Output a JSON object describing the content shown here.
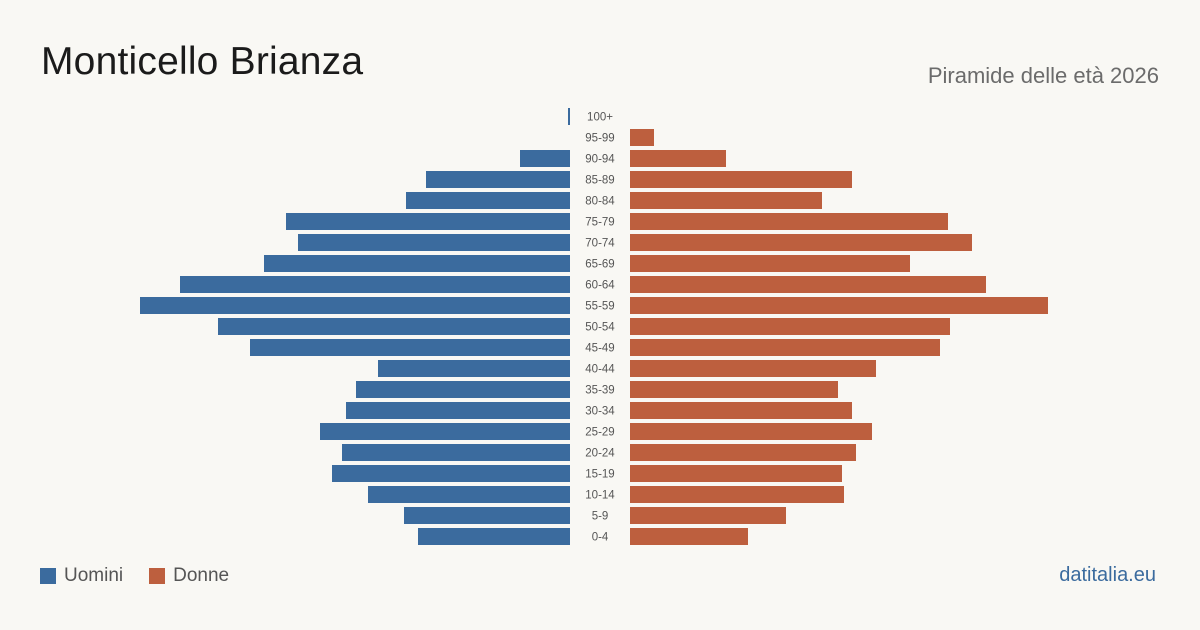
{
  "header": {
    "title": "Monticello Brianza",
    "subtitle": "Piramide delle età 2026"
  },
  "legend": {
    "men_label": "Uomini",
    "women_label": "Donne"
  },
  "brand": "datitalia.eu",
  "colors": {
    "men": "#3b6b9e",
    "women": "#bd5f3e",
    "background": "#f9f8f4"
  },
  "chart_data": {
    "type": "bar",
    "orientation": "horizontal-pyramid",
    "categories": [
      "100+",
      "95-99",
      "90-94",
      "85-89",
      "80-84",
      "75-79",
      "70-74",
      "65-69",
      "60-64",
      "55-59",
      "50-54",
      "45-49",
      "40-44",
      "35-39",
      "30-34",
      "25-29",
      "20-24",
      "15-19",
      "10-14",
      "5-9",
      "0-4"
    ],
    "series": [
      {
        "name": "Uomini",
        "values": [
          1,
          0,
          25,
          72,
          82,
          142,
          136,
          153,
          195,
          215,
          176,
          160,
          96,
          107,
          112,
          125,
          114,
          119,
          101,
          83,
          76
        ]
      },
      {
        "name": "Donne",
        "values": [
          0,
          12,
          48,
          111,
          96,
          159,
          171,
          140,
          178,
          209,
          160,
          155,
          123,
          104,
          111,
          121,
          113,
          106,
          107,
          78,
          59
        ]
      }
    ]
  }
}
